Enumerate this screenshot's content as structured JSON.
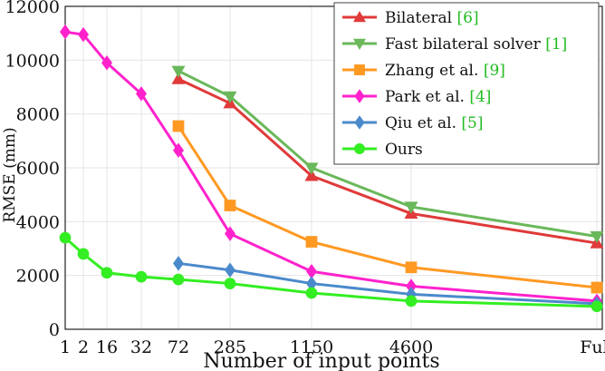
{
  "chart_data": {
    "type": "line",
    "title": "",
    "xlabel": "Number of input points",
    "ylabel": "RMSE (mm)",
    "categories": [
      "1",
      "2",
      "16",
      "32",
      "72",
      "285",
      "1150",
      "4600",
      "Full"
    ],
    "y_ticks": [
      "0",
      "2000",
      "4000",
      "6000",
      "8000",
      "10000",
      "12000"
    ],
    "ylim": [
      0,
      12000
    ],
    "grid": true,
    "legend_position": "top-right",
    "series": [
      {
        "name": "Bilateral",
        "ref": "[6]",
        "color": "#e03a3a",
        "marker": "triangle-up",
        "x": [
          "72",
          "285",
          "1150",
          "4600",
          "Full"
        ],
        "values": [
          9300,
          8400,
          5700,
          4300,
          3200
        ]
      },
      {
        "name": "Fast bilateral solver",
        "ref": "[1]",
        "color": "#6ab85a",
        "marker": "triangle-down",
        "x": [
          "72",
          "285",
          "1150",
          "4600",
          "Full"
        ],
        "values": [
          9600,
          8650,
          6000,
          4550,
          3450
        ]
      },
      {
        "name": "Zhang et al.",
        "ref": "[9]",
        "color": "#ff9922",
        "marker": "square",
        "x": [
          "72",
          "285",
          "1150",
          "4600",
          "Full"
        ],
        "values": [
          7550,
          4600,
          3250,
          2300,
          1550
        ]
      },
      {
        "name": "Park et al.",
        "ref": "[4]",
        "color": "#ff22cc",
        "marker": "diamond",
        "x": [
          "1",
          "2",
          "16",
          "32",
          "72",
          "285",
          "1150",
          "4600",
          "Full"
        ],
        "values": [
          11050,
          10950,
          9900,
          8750,
          6650,
          3550,
          2150,
          1600,
          1050
        ]
      },
      {
        "name": "Qiu et al.",
        "ref": "[5]",
        "color": "#4a8acb",
        "marker": "diamond",
        "x": [
          "72",
          "285",
          "1150",
          "4600",
          "Full"
        ],
        "values": [
          2450,
          2200,
          1700,
          1300,
          950
        ]
      },
      {
        "name": "Ours",
        "ref": "",
        "color": "#33ee22",
        "marker": "circle",
        "x": [
          "1",
          "2",
          "16",
          "32",
          "72",
          "285",
          "1150",
          "4600",
          "Full"
        ],
        "values": [
          3400,
          2800,
          2100,
          1950,
          1850,
          1700,
          1350,
          1050,
          850
        ]
      }
    ]
  }
}
